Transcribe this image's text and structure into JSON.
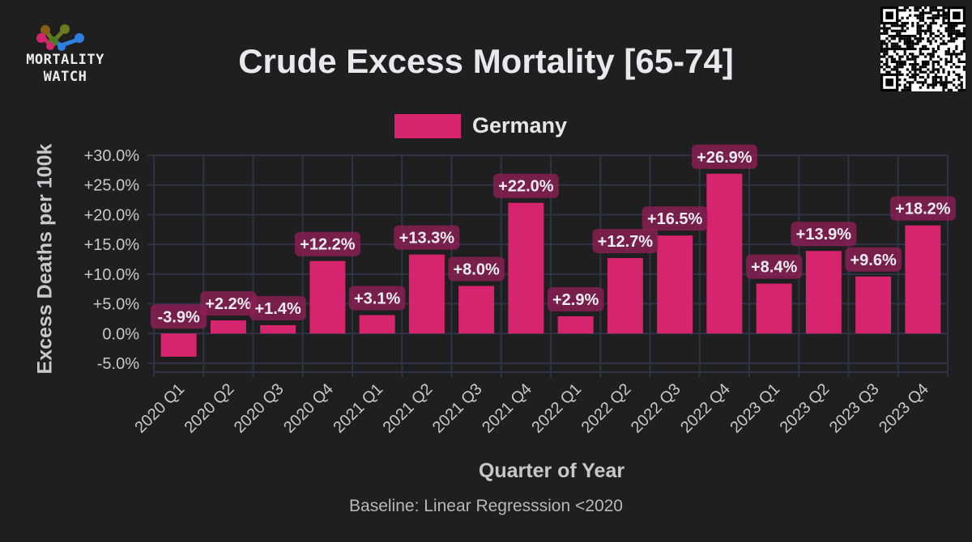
{
  "branding": {
    "logo_text_line1": "MORTALITY",
    "logo_text_line2": "WATCH"
  },
  "chart_data": {
    "type": "bar",
    "title": "Crude Excess Mortality [65-74]",
    "xlabel": "Quarter of Year",
    "ylabel": "Excess Deaths per 100k",
    "footnote": "Baseline: Linear Regresssion <2020",
    "legend": {
      "position": "top-center",
      "entries": [
        "Germany"
      ]
    },
    "categories": [
      "2020 Q1",
      "2020 Q2",
      "2020 Q3",
      "2020 Q4",
      "2021 Q1",
      "2021 Q2",
      "2021 Q3",
      "2021 Q4",
      "2022 Q1",
      "2022 Q2",
      "2022 Q3",
      "2022 Q4",
      "2023 Q1",
      "2023 Q2",
      "2023 Q3",
      "2023 Q4"
    ],
    "series": [
      {
        "name": "Germany",
        "color": "#d6246e",
        "values": [
          -3.9,
          2.2,
          1.4,
          12.2,
          3.1,
          13.3,
          8.0,
          22.0,
          2.9,
          12.7,
          16.5,
          26.9,
          8.4,
          13.9,
          9.6,
          18.2
        ],
        "labels": [
          "-3.9%",
          "+2.2%",
          "+1.4%",
          "+12.2%",
          "+3.1%",
          "+13.3%",
          "+8.0%",
          "+22.0%",
          "+2.9%",
          "+12.7%",
          "+16.5%",
          "+26.9%",
          "+8.4%",
          "+13.9%",
          "+9.6%",
          "+18.2%"
        ]
      }
    ],
    "yticks": [
      -5,
      0,
      5,
      10,
      15,
      20,
      25,
      30
    ],
    "ytick_labels": [
      "-5.0%",
      "0.0%",
      "+5.0%",
      "+10.0%",
      "+15.0%",
      "+20.0%",
      "+25.0%",
      "+30.0%"
    ],
    "ylim": [
      -6.5,
      30
    ],
    "grid": true
  }
}
